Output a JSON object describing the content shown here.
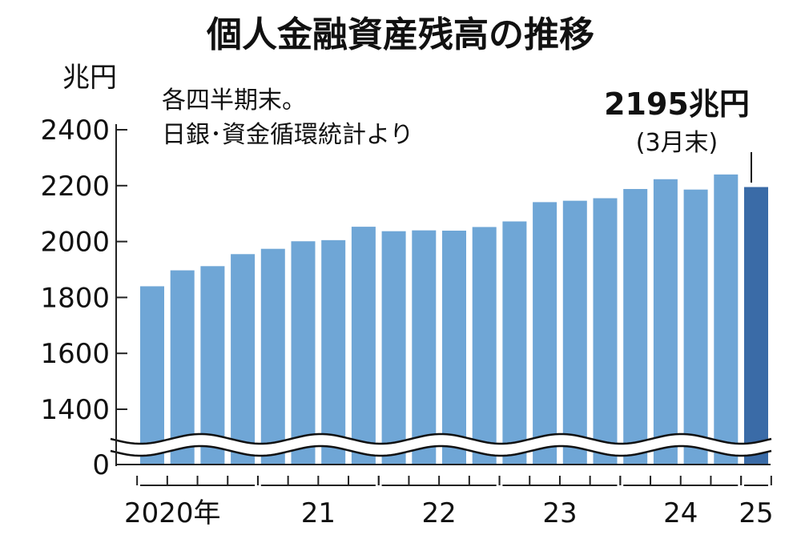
{
  "chart_data": {
    "type": "bar",
    "title": "個人金融資産残高の推移",
    "ylabel": "兆円",
    "notes": [
      "各四半期末。",
      "日銀･資金循環統計より"
    ],
    "y_ticks": [
      "2400",
      "2200",
      "2000",
      "1800",
      "1600",
      "1400",
      "0"
    ],
    "ylim": [
      1300,
      2400
    ],
    "axis_break": true,
    "categories": [
      "2020Q1",
      "2020Q2",
      "2020Q3",
      "2020Q4",
      "2021Q1",
      "2021Q2",
      "2021Q3",
      "2021Q4",
      "2022Q1",
      "2022Q2",
      "2022Q3",
      "2022Q4",
      "2023Q1",
      "2023Q2",
      "2023Q3",
      "2023Q4",
      "2024Q1",
      "2024Q2",
      "2024Q3",
      "2024Q4",
      "2025Q1"
    ],
    "values": [
      1840,
      1897,
      1912,
      1955,
      1974,
      2001,
      2005,
      2053,
      2037,
      2040,
      2039,
      2052,
      2072,
      2141,
      2146,
      2155,
      2188,
      2223,
      2186,
      2240,
      2195
    ],
    "highlight_index": 20,
    "x_groups": [
      {
        "label": "2020年",
        "start": 0,
        "end": 3
      },
      {
        "label": "21",
        "start": 4,
        "end": 7
      },
      {
        "label": "22",
        "start": 8,
        "end": 11
      },
      {
        "label": "23",
        "start": 12,
        "end": 15
      },
      {
        "label": "24",
        "start": 16,
        "end": 19
      },
      {
        "label": "25",
        "start": 20,
        "end": 20
      }
    ],
    "callout": {
      "value": "2195兆円",
      "date": "(3月末)"
    },
    "colors": {
      "bar": "#6fa6d6",
      "highlight": "#3a6ba7",
      "text": "#111111",
      "axis": "#222222"
    }
  }
}
